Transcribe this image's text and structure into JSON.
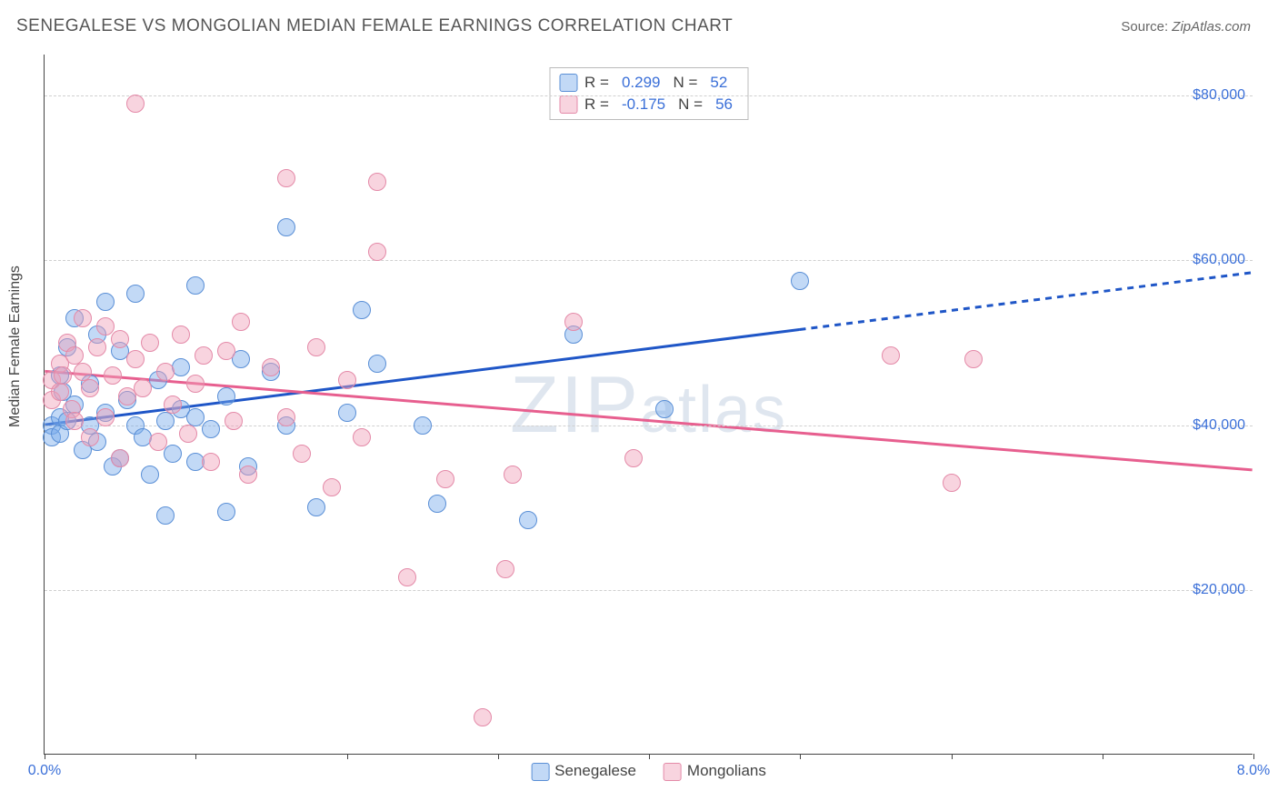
{
  "title": "SENEGALESE VS MONGOLIAN MEDIAN FEMALE EARNINGS CORRELATION CHART",
  "source_label": "Source:",
  "source_value": "ZipAtlas.com",
  "ylabel": "Median Female Earnings",
  "watermark": "ZIPatlas",
  "chart": {
    "type": "scatter",
    "background_color": "#ffffff",
    "grid_color": "#d0d0d0",
    "axis_color": "#444444",
    "tick_label_color": "#3a6fd8",
    "font_family": "Arial",
    "xlim": [
      0,
      8
    ],
    "ylim": [
      0,
      85000
    ],
    "y_ticks": [
      {
        "v": 20000,
        "label": "$20,000"
      },
      {
        "v": 40000,
        "label": "$40,000"
      },
      {
        "v": 60000,
        "label": "$60,000"
      },
      {
        "v": 80000,
        "label": "$80,000"
      }
    ],
    "x_ticks_major": [
      0,
      1,
      2,
      3,
      4,
      5,
      6,
      7,
      8
    ],
    "x_tick_labels": [
      {
        "v": 0,
        "label": "0.0%"
      },
      {
        "v": 8,
        "label": "8.0%"
      }
    ],
    "point_radius": 10,
    "series": [
      {
        "id": "senegalese",
        "label": "Senegalese",
        "fill_color": "rgba(120,170,235,0.45)",
        "stroke_color": "#5a8fd6",
        "line_color": "#1f56c7",
        "line_width": 3,
        "R": "0.299",
        "N": "52",
        "trend": {
          "y_at_x0": 40000,
          "y_at_x8": 58500,
          "solid_until_x": 5.0
        },
        "points": [
          [
            0.05,
            40000
          ],
          [
            0.05,
            38500
          ],
          [
            0.1,
            46000
          ],
          [
            0.1,
            41000
          ],
          [
            0.1,
            39000
          ],
          [
            0.12,
            44000
          ],
          [
            0.15,
            49500
          ],
          [
            0.15,
            40500
          ],
          [
            0.2,
            53000
          ],
          [
            0.2,
            42500
          ],
          [
            0.25,
            37000
          ],
          [
            0.3,
            45000
          ],
          [
            0.3,
            40000
          ],
          [
            0.35,
            51000
          ],
          [
            0.35,
            38000
          ],
          [
            0.4,
            55000
          ],
          [
            0.4,
            41500
          ],
          [
            0.45,
            35000
          ],
          [
            0.5,
            49000
          ],
          [
            0.5,
            36000
          ],
          [
            0.55,
            43000
          ],
          [
            0.6,
            56000
          ],
          [
            0.6,
            40000
          ],
          [
            0.65,
            38500
          ],
          [
            0.7,
            34000
          ],
          [
            0.75,
            45500
          ],
          [
            0.8,
            40500
          ],
          [
            0.8,
            29000
          ],
          [
            0.85,
            36500
          ],
          [
            0.9,
            47000
          ],
          [
            0.9,
            42000
          ],
          [
            1.0,
            57000
          ],
          [
            1.0,
            41000
          ],
          [
            1.0,
            35500
          ],
          [
            1.1,
            39500
          ],
          [
            1.2,
            43500
          ],
          [
            1.2,
            29500
          ],
          [
            1.3,
            48000
          ],
          [
            1.35,
            35000
          ],
          [
            1.5,
            46500
          ],
          [
            1.6,
            64000
          ],
          [
            1.6,
            40000
          ],
          [
            1.8,
            30000
          ],
          [
            2.0,
            41500
          ],
          [
            2.1,
            54000
          ],
          [
            2.2,
            47500
          ],
          [
            2.5,
            40000
          ],
          [
            2.6,
            30500
          ],
          [
            3.2,
            28500
          ],
          [
            3.5,
            51000
          ],
          [
            4.1,
            42000
          ],
          [
            5.0,
            57500
          ]
        ]
      },
      {
        "id": "mongolians",
        "label": "Mongolians",
        "fill_color": "rgba(240,160,185,0.45)",
        "stroke_color": "#e48aa8",
        "line_color": "#e75f8f",
        "line_width": 3,
        "R": "-0.175",
        "N": "56",
        "trend": {
          "y_at_x0": 46500,
          "y_at_x8": 34500,
          "solid_until_x": 8.0
        },
        "points": [
          [
            0.05,
            45500
          ],
          [
            0.05,
            43000
          ],
          [
            0.1,
            47500
          ],
          [
            0.1,
            44000
          ],
          [
            0.12,
            46000
          ],
          [
            0.15,
            50000
          ],
          [
            0.18,
            42000
          ],
          [
            0.2,
            48500
          ],
          [
            0.2,
            40500
          ],
          [
            0.25,
            53000
          ],
          [
            0.25,
            46500
          ],
          [
            0.3,
            44500
          ],
          [
            0.3,
            38500
          ],
          [
            0.35,
            49500
          ],
          [
            0.4,
            52000
          ],
          [
            0.4,
            41000
          ],
          [
            0.45,
            46000
          ],
          [
            0.5,
            50500
          ],
          [
            0.5,
            36000
          ],
          [
            0.55,
            43500
          ],
          [
            0.6,
            48000
          ],
          [
            0.6,
            79000
          ],
          [
            0.65,
            44500
          ],
          [
            0.7,
            50000
          ],
          [
            0.75,
            38000
          ],
          [
            0.8,
            46500
          ],
          [
            0.85,
            42500
          ],
          [
            0.9,
            51000
          ],
          [
            0.95,
            39000
          ],
          [
            1.0,
            45000
          ],
          [
            1.05,
            48500
          ],
          [
            1.1,
            35500
          ],
          [
            1.2,
            49000
          ],
          [
            1.25,
            40500
          ],
          [
            1.3,
            52500
          ],
          [
            1.35,
            34000
          ],
          [
            1.5,
            47000
          ],
          [
            1.6,
            70000
          ],
          [
            1.6,
            41000
          ],
          [
            1.7,
            36500
          ],
          [
            1.8,
            49500
          ],
          [
            1.9,
            32500
          ],
          [
            2.0,
            45500
          ],
          [
            2.1,
            38500
          ],
          [
            2.2,
            69500
          ],
          [
            2.2,
            61000
          ],
          [
            2.4,
            21500
          ],
          [
            2.65,
            33500
          ],
          [
            2.9,
            4500
          ],
          [
            3.05,
            22500
          ],
          [
            3.1,
            34000
          ],
          [
            3.5,
            52500
          ],
          [
            3.9,
            36000
          ],
          [
            5.6,
            48500
          ],
          [
            6.0,
            33000
          ],
          [
            6.15,
            48000
          ]
        ]
      }
    ],
    "legend_top": {
      "border_color": "#bbbbbb",
      "text_color": "#444444",
      "value_color": "#3a6fd8",
      "R_label": "R =",
      "N_label": "N ="
    },
    "legend_bottom_swatches": [
      {
        "series": "senegalese"
      },
      {
        "series": "mongolians"
      }
    ]
  }
}
